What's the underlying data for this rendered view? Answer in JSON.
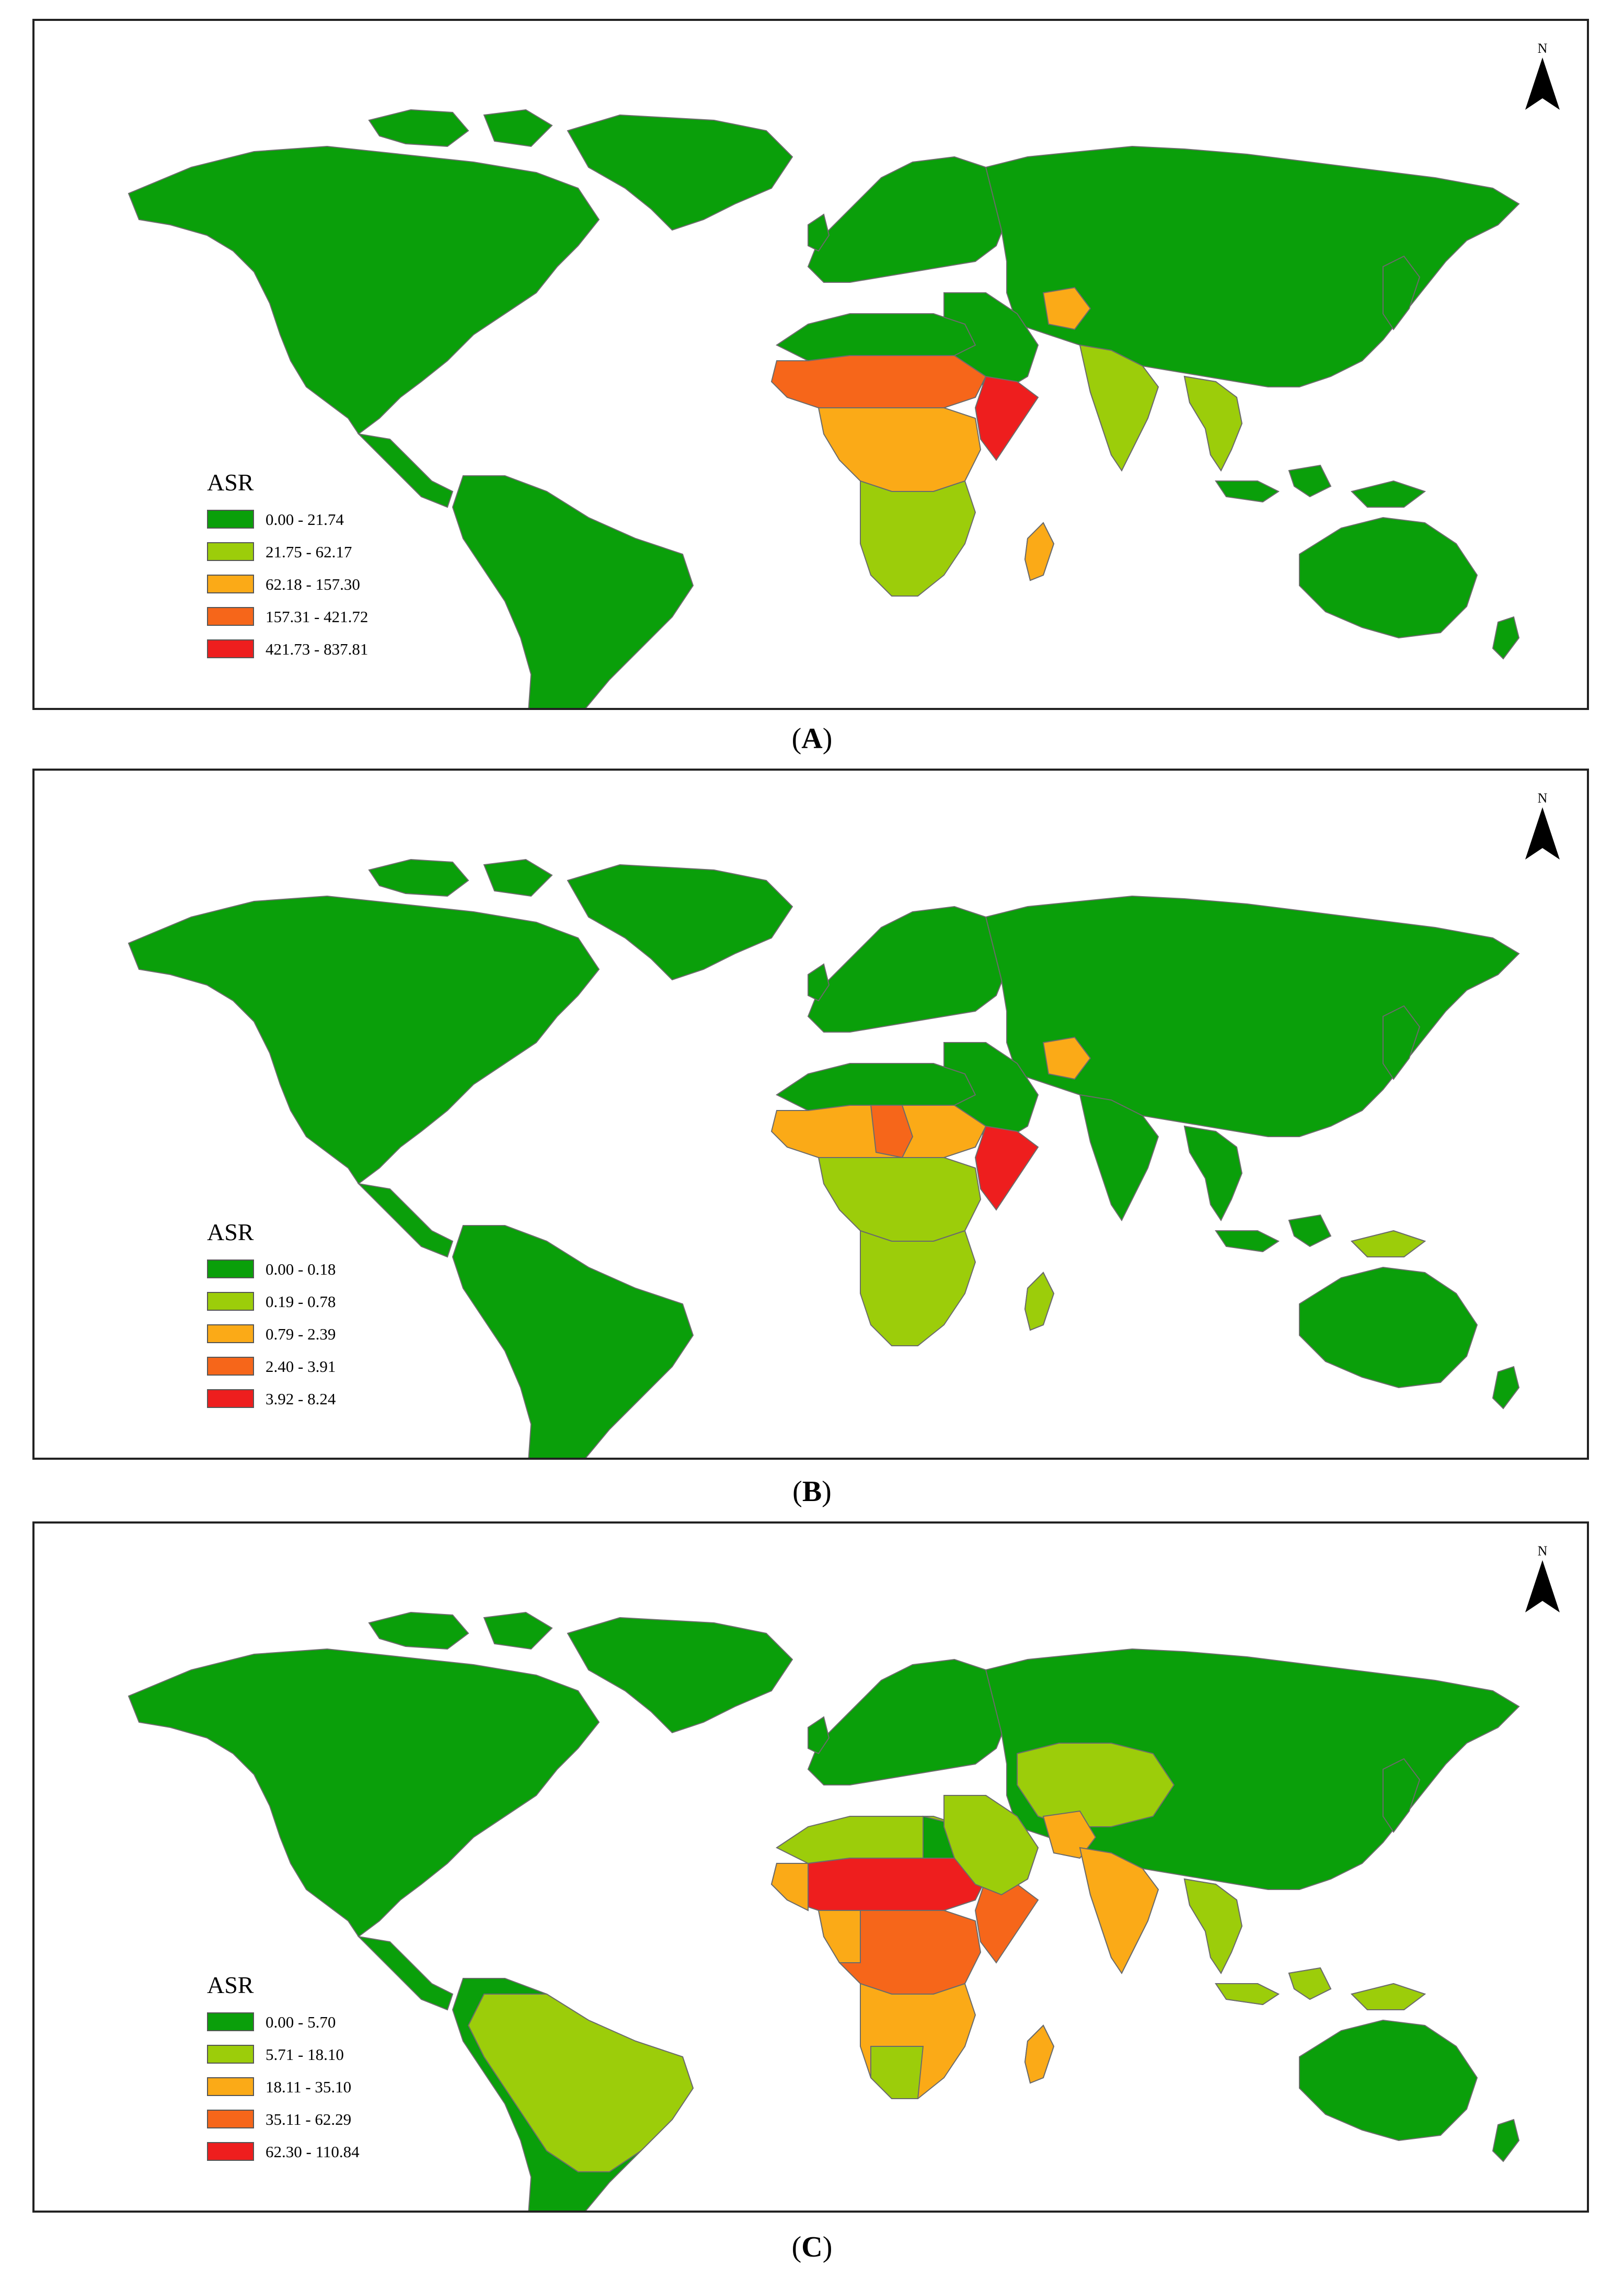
{
  "panels": [
    {
      "caption_letter": "A",
      "legend": {
        "title": "ASR",
        "items": [
          {
            "label": "0.00 - 21.74",
            "color": "#0a9f0a"
          },
          {
            "label": "21.75 - 62.17",
            "color": "#9ccd0a"
          },
          {
            "label": "62.18 - 157.30",
            "color": "#fbaa17"
          },
          {
            "label": "157.31 - 421.72",
            "color": "#f6661a"
          },
          {
            "label": "421.73 - 837.81",
            "color": "#ee1e1e"
          }
        ]
      },
      "north_label": "N"
    },
    {
      "caption_letter": "B",
      "legend": {
        "title": "ASR",
        "items": [
          {
            "label": "0.00 - 0.18",
            "color": "#0a9f0a"
          },
          {
            "label": "0.19 - 0.78",
            "color": "#9ccd0a"
          },
          {
            "label": "0.79 - 2.39",
            "color": "#fbaa17"
          },
          {
            "label": "2.40 - 3.91",
            "color": "#f6661a"
          },
          {
            "label": "3.92 - 8.24",
            "color": "#ee1e1e"
          }
        ]
      },
      "north_label": "N"
    },
    {
      "caption_letter": "C",
      "legend": {
        "title": "ASR",
        "items": [
          {
            "label": "0.00 - 5.70",
            "color": "#0a9f0a"
          },
          {
            "label": "5.71 - 18.10",
            "color": "#9ccd0a"
          },
          {
            "label": "18.11 - 35.10",
            "color": "#fbaa17"
          },
          {
            "label": "35.11 - 62.29",
            "color": "#f6661a"
          },
          {
            "label": "62.30 - 110.84",
            "color": "#ee1e1e"
          }
        ]
      },
      "north_label": "N"
    }
  ],
  "caption_paren_open": "(",
  "caption_paren_close": ")"
}
